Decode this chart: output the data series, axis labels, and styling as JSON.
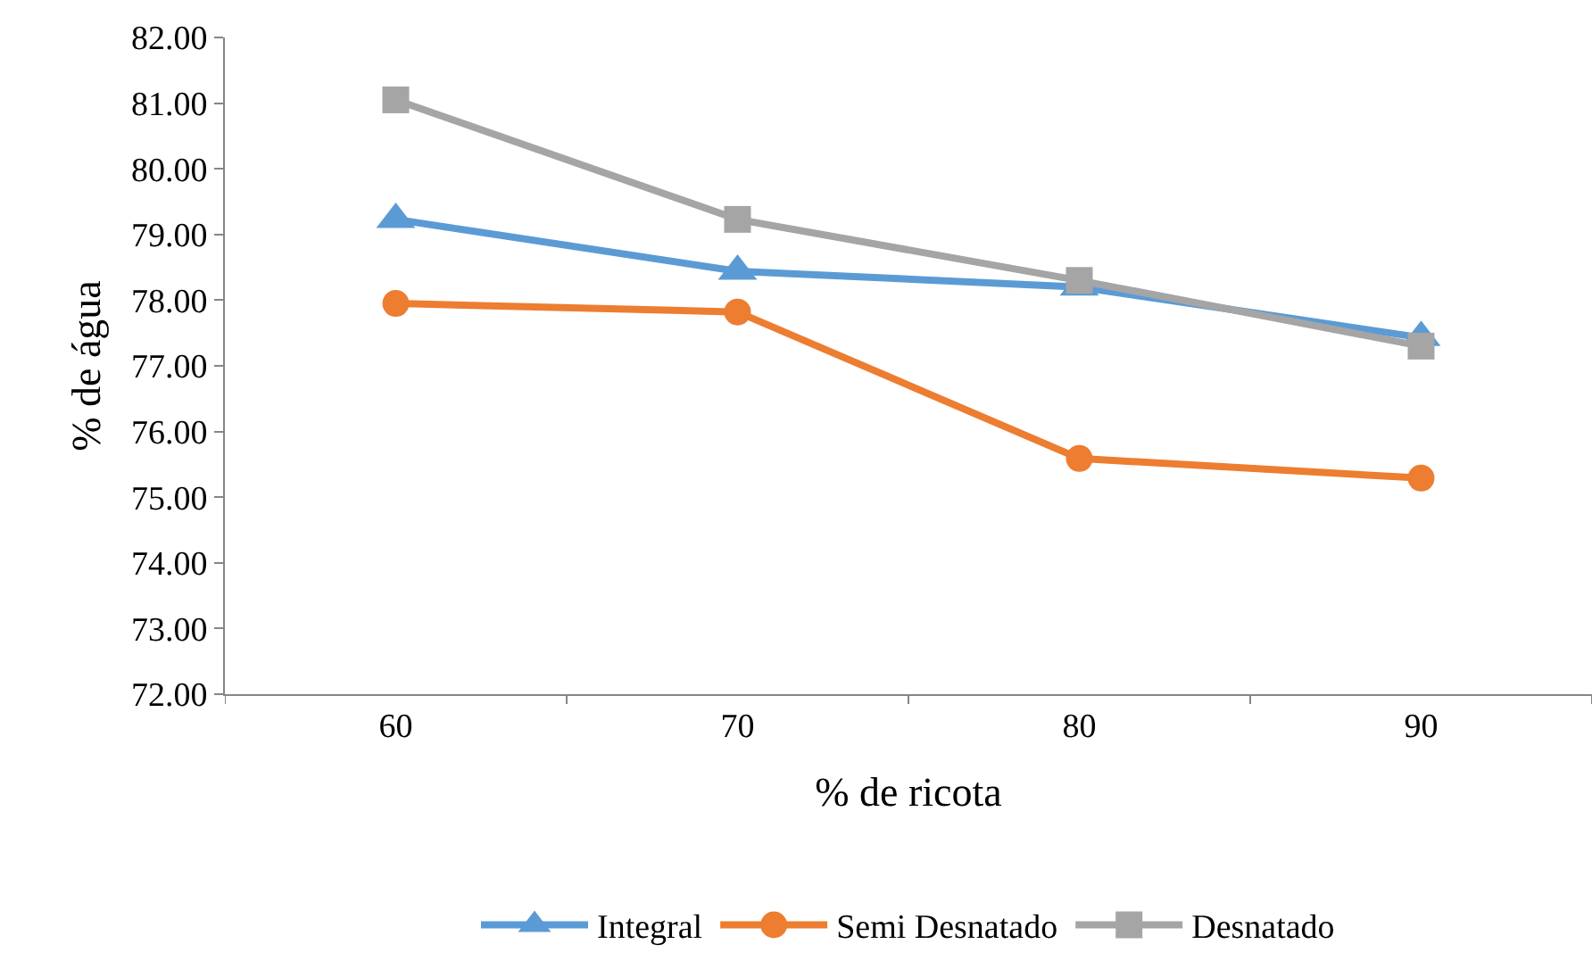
{
  "chart_data": {
    "type": "line",
    "xlabel": "% de ricota",
    "ylabel": "% de água",
    "categories": [
      "60",
      "70",
      "80",
      "90"
    ],
    "series": [
      {
        "name": "Integral",
        "color": "#5b9bd5",
        "marker": "triangle",
        "values": [
          79.23,
          78.44,
          78.2,
          77.43
        ]
      },
      {
        "name": "Semi Desnatado",
        "color": "#ed7d31",
        "marker": "circle",
        "values": [
          77.95,
          77.82,
          75.59,
          75.29
        ]
      },
      {
        "name": "Desnatado",
        "color": "#a5a5a5",
        "marker": "square",
        "values": [
          81.05,
          79.23,
          78.3,
          77.3
        ]
      }
    ],
    "ylim": [
      72,
      82
    ],
    "yticks": [
      {
        "value": 72,
        "label": "72.00"
      },
      {
        "value": 73,
        "label": "73.00"
      },
      {
        "value": 74,
        "label": "74.00"
      },
      {
        "value": 75,
        "label": "75.00"
      },
      {
        "value": 76,
        "label": "76.00"
      },
      {
        "value": 77,
        "label": "77.00"
      },
      {
        "value": 78,
        "label": "78.00"
      },
      {
        "value": 79,
        "label": "79.00"
      },
      {
        "value": 80,
        "label": "80.00"
      },
      {
        "value": 81,
        "label": "81.00"
      },
      {
        "value": 82,
        "label": "82.00"
      }
    ],
    "grid": false,
    "legend": "bottom",
    "line_style": "solid"
  }
}
